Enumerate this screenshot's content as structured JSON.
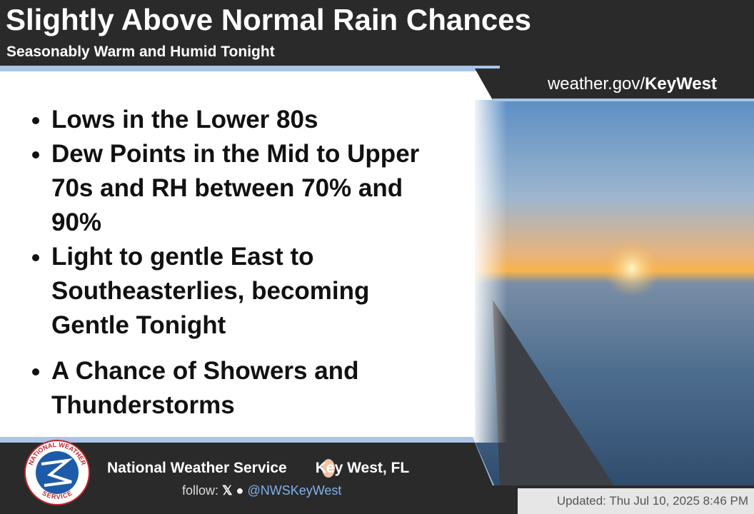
{
  "header": {
    "title": "Slightly Above Normal Rain Chances",
    "subtitle": "Seasonably Warm and Humid Tonight"
  },
  "site": {
    "prefix": "weather.gov/",
    "office": "KeyWest"
  },
  "bullets": [
    "Lows in the Lower 80s",
    "Dew Points in the Mid to Upper 70s and RH between 70% and 90%",
    "Light to gentle East to Southeasterlies, becoming Gentle Tonight",
    "A Chance of Showers and Thunderstorms"
  ],
  "footer": {
    "agency": "National Weather Service",
    "office": "Key West, FL",
    "follow": "follow:",
    "handle": "@NWSKeyWest",
    "updated": "Updated: Thu Jul 10, 2025 8:46 PM"
  },
  "logo": {
    "top": "NATIONAL WEATHER",
    "bottom": "SERVICE"
  }
}
